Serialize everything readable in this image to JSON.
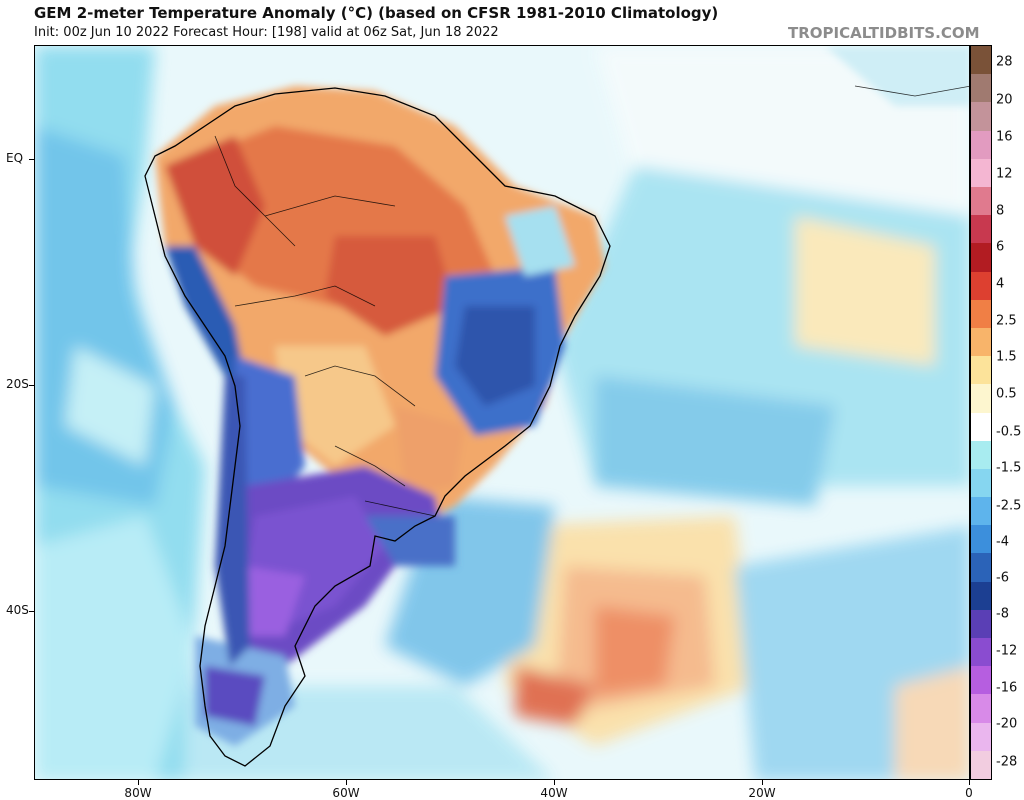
{
  "header": {
    "title": "GEM 2-meter Temperature Anomaly (°C) (based on CFSR 1981-2010 Climatology)",
    "subtitle": "Init: 00z Jun 10 2022   Forecast Hour: [198]   valid at 06z Sat, Jun 18 2022",
    "brand": "TROPICALTIDBITS.COM"
  },
  "map": {
    "lat_labels": [
      "EQ",
      "20S",
      "40S"
    ],
    "lon_labels": [
      "80W",
      "60W",
      "40W",
      "20W",
      "0"
    ],
    "lat_values": [
      0,
      -20,
      -40
    ],
    "lon_values": [
      -80,
      -60,
      -40,
      -20,
      0
    ],
    "extent": {
      "lon_min": -90,
      "lon_max": 0,
      "lat_min": -55,
      "lat_max": 10
    }
  },
  "colorbar": {
    "labels": [
      "28",
      "20",
      "16",
      "12",
      "8",
      "6",
      "4",
      "2.5",
      "1.5",
      "0.5",
      "-0.5",
      "-1.5",
      "-2.5",
      "-4",
      "-6",
      "-8",
      "-12",
      "-16",
      "-20",
      "-28"
    ],
    "colors": [
      "#7a5238",
      "#a07a70",
      "#c3939a",
      "#e29bc0",
      "#f4b6d2",
      "#e07a8e",
      "#c8394f",
      "#b21c22",
      "#dd4030",
      "#f07f45",
      "#f8b46a",
      "#fce39a",
      "#fdf6cf",
      "#ffffff",
      "#a8ecf0",
      "#86d6f0",
      "#5eb4ec",
      "#3c8fdc",
      "#2b63b8",
      "#1c3f92",
      "#5a3fb5",
      "#8a4cd0",
      "#b65ee0",
      "#d88ae8",
      "#eab6ee",
      "#f2cde0"
    ]
  }
}
